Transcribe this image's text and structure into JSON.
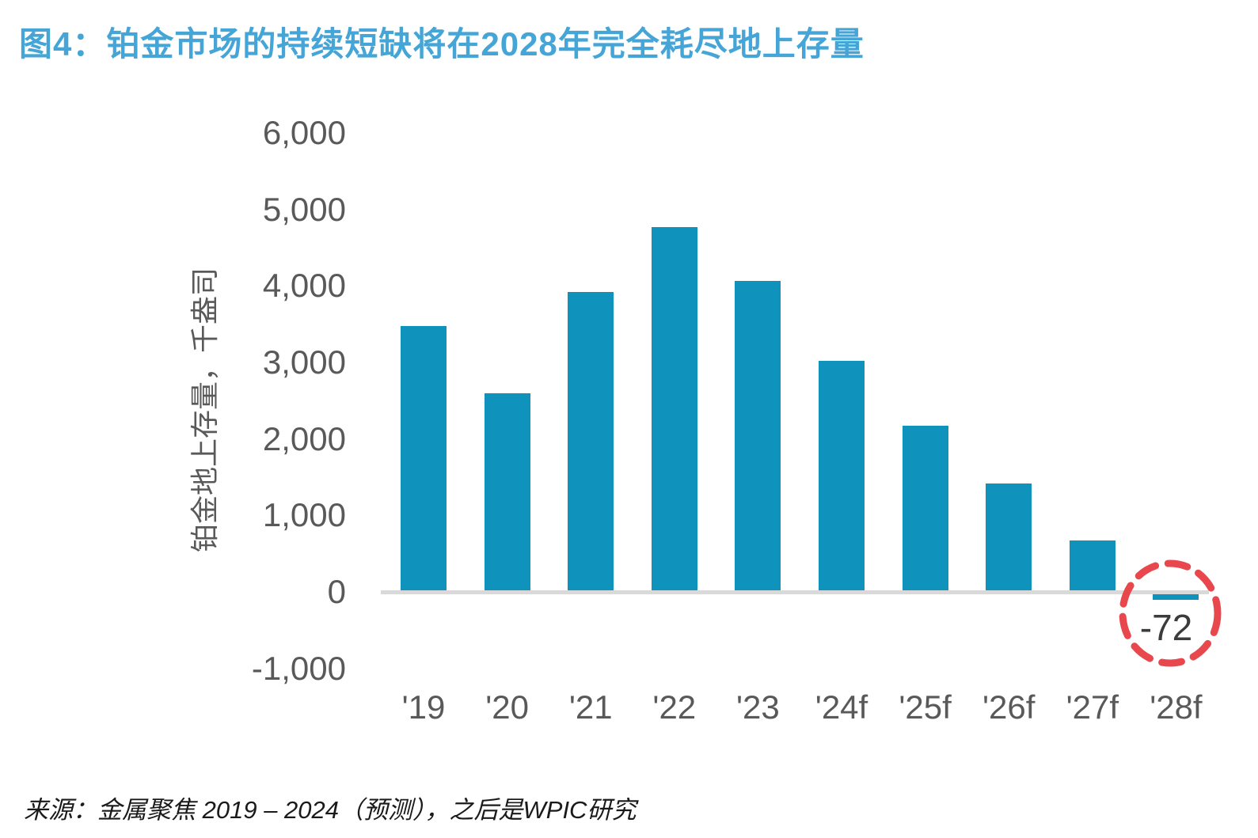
{
  "title": "图4：铂金市场的持续短缺将在2028年完全耗尽地上存量",
  "source": "来源：金属聚焦 2019 – 2024（预测），之后是WPIC研究",
  "colors": {
    "title": "#45A5D6",
    "bar": "#0F93BC",
    "axis_line": "#D9D9D9",
    "tick_label": "#595959",
    "annotation_stroke": "#E8484D",
    "annotation_text": "#3c3c3c"
  },
  "chart_data": {
    "type": "bar",
    "categories": [
      "'19",
      "'20",
      "'21",
      "'22",
      "'23",
      "'24f",
      "'25f",
      "'26f",
      "'27f",
      "'28f"
    ],
    "values": [
      3450,
      2570,
      3900,
      4750,
      4040,
      3000,
      2150,
      1400,
      650,
      -72
    ],
    "title": "图4：铂金市场的持续短缺将在2028年完全耗尽地上存量",
    "xlabel": "",
    "ylabel": "铂金地上存量，千盎司",
    "ylim": [
      -1000,
      6000
    ],
    "yticks": [
      6000,
      5000,
      4000,
      3000,
      2000,
      1000,
      0,
      -1000
    ],
    "ytick_labels": [
      "6,000",
      "5,000",
      "4,000",
      "3,000",
      "2,000",
      "1,000",
      "0",
      "-1,000"
    ],
    "grid": false,
    "legend": false,
    "annotation": {
      "label": "-72",
      "category": "'28f",
      "style": "red-dashed-circle"
    }
  }
}
